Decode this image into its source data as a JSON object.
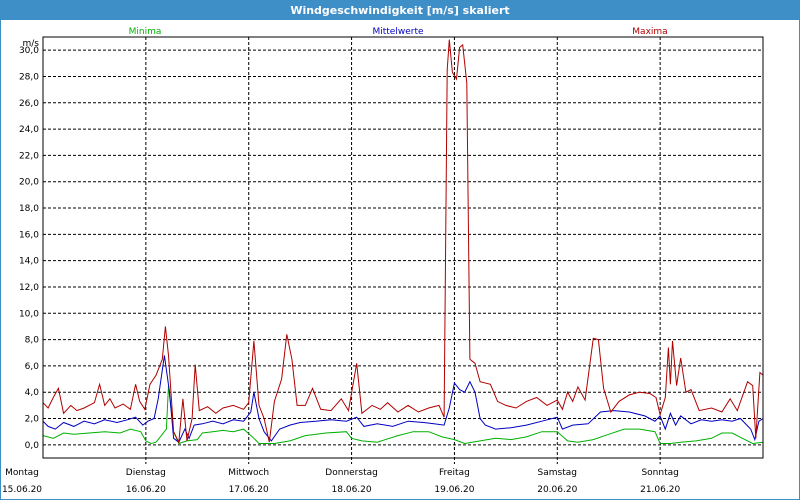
{
  "window": {
    "title": "Windgeschwindigkeit [m/s] skaliert"
  },
  "colors": {
    "minima": "#00b000",
    "mittel": "#0000c0",
    "maxima": "#b00000",
    "grid": "#000000",
    "title_bar": "#3e8ec8"
  },
  "chart_data": {
    "type": "line",
    "title": "Windgeschwindigkeit [m/s] skaliert",
    "ylabel": "m/s",
    "ylim": [
      -1.0,
      31.0
    ],
    "yticks": [
      "0,0",
      "2,0",
      "4,0",
      "6,0",
      "8,0",
      "10,0",
      "12,0",
      "14,0",
      "16,0",
      "18,0",
      "20,0",
      "22,0",
      "24,0",
      "26,0",
      "28,0",
      "30,0"
    ],
    "xlim": [
      0,
      7
    ],
    "day_labels": [
      {
        "day": "Montag",
        "date": "15.06.20"
      },
      {
        "day": "Dienstag",
        "date": "16.06.20"
      },
      {
        "day": "Mittwoch",
        "date": "17.06.20"
      },
      {
        "day": "Donnerstag",
        "date": "18.06.20"
      },
      {
        "day": "Freitag",
        "date": "19.06.20"
      },
      {
        "day": "Samstag",
        "date": "20.06.20"
      },
      {
        "day": "Sonntag",
        "date": "21.06.20"
      }
    ],
    "grid": true,
    "series": [
      {
        "name": "Minima",
        "color": "#00b000",
        "points": [
          [
            0,
            0.7
          ],
          [
            0.1,
            0.5
          ],
          [
            0.2,
            0.9
          ],
          [
            0.3,
            0.8
          ],
          [
            0.45,
            0.9
          ],
          [
            0.6,
            1.0
          ],
          [
            0.75,
            0.9
          ],
          [
            0.85,
            1.2
          ],
          [
            0.95,
            1.0
          ],
          [
            1.0,
            0.3
          ],
          [
            1.05,
            0.1
          ],
          [
            1.1,
            0.2
          ],
          [
            1.2,
            1.2
          ],
          [
            1.22,
            4.5
          ],
          [
            1.27,
            1.0
          ],
          [
            1.32,
            0.1
          ],
          [
            1.4,
            0.3
          ],
          [
            1.5,
            0.4
          ],
          [
            1.55,
            0.9
          ],
          [
            1.65,
            1.0
          ],
          [
            1.75,
            1.1
          ],
          [
            1.85,
            1.0
          ],
          [
            1.95,
            1.2
          ],
          [
            2.05,
            0.5
          ],
          [
            2.1,
            0.1
          ],
          [
            2.25,
            0.1
          ],
          [
            2.4,
            0.3
          ],
          [
            2.55,
            0.7
          ],
          [
            2.75,
            0.9
          ],
          [
            2.95,
            1.0
          ],
          [
            3.0,
            0.5
          ],
          [
            3.1,
            0.3
          ],
          [
            3.25,
            0.2
          ],
          [
            3.45,
            0.7
          ],
          [
            3.6,
            1.0
          ],
          [
            3.75,
            1.0
          ],
          [
            3.88,
            0.6
          ],
          [
            4.0,
            0.4
          ],
          [
            4.1,
            0.1
          ],
          [
            4.25,
            0.3
          ],
          [
            4.4,
            0.5
          ],
          [
            4.55,
            0.4
          ],
          [
            4.7,
            0.6
          ],
          [
            4.85,
            1.0
          ],
          [
            5.0,
            1.0
          ],
          [
            5.1,
            0.3
          ],
          [
            5.2,
            0.2
          ],
          [
            5.35,
            0.4
          ],
          [
            5.5,
            0.8
          ],
          [
            5.65,
            1.2
          ],
          [
            5.8,
            1.2
          ],
          [
            5.95,
            1.0
          ],
          [
            6.0,
            0.1
          ],
          [
            6.1,
            0.1
          ],
          [
            6.2,
            0.2
          ],
          [
            6.35,
            0.3
          ],
          [
            6.5,
            0.5
          ],
          [
            6.6,
            0.9
          ],
          [
            6.7,
            0.9
          ],
          [
            6.8,
            0.5
          ],
          [
            6.9,
            0.1
          ],
          [
            7.0,
            0.2
          ]
        ]
      },
      {
        "name": "Mittelwerte",
        "color": "#0000c0",
        "points": [
          [
            0,
            1.8
          ],
          [
            0.05,
            1.4
          ],
          [
            0.12,
            1.2
          ],
          [
            0.2,
            1.7
          ],
          [
            0.3,
            1.4
          ],
          [
            0.4,
            1.8
          ],
          [
            0.5,
            1.6
          ],
          [
            0.6,
            1.9
          ],
          [
            0.72,
            1.7
          ],
          [
            0.82,
            1.9
          ],
          [
            0.9,
            2.1
          ],
          [
            0.97,
            1.5
          ],
          [
            1.02,
            1.8
          ],
          [
            1.08,
            2.0
          ],
          [
            1.12,
            3.5
          ],
          [
            1.18,
            6.8
          ],
          [
            1.23,
            4.0
          ],
          [
            1.27,
            0.5
          ],
          [
            1.32,
            0.2
          ],
          [
            1.38,
            1.2
          ],
          [
            1.42,
            0.5
          ],
          [
            1.47,
            1.5
          ],
          [
            1.55,
            1.6
          ],
          [
            1.65,
            1.8
          ],
          [
            1.75,
            1.6
          ],
          [
            1.85,
            1.9
          ],
          [
            1.95,
            1.8
          ],
          [
            2.02,
            2.5
          ],
          [
            2.05,
            4.0
          ],
          [
            2.1,
            2.0
          ],
          [
            2.15,
            1.0
          ],
          [
            2.22,
            0.3
          ],
          [
            2.3,
            1.2
          ],
          [
            2.4,
            1.5
          ],
          [
            2.5,
            1.7
          ],
          [
            2.65,
            1.8
          ],
          [
            2.8,
            1.9
          ],
          [
            2.95,
            1.8
          ],
          [
            3.05,
            2.1
          ],
          [
            3.12,
            1.4
          ],
          [
            3.25,
            1.6
          ],
          [
            3.4,
            1.4
          ],
          [
            3.55,
            1.8
          ],
          [
            3.7,
            1.7
          ],
          [
            3.8,
            1.6
          ],
          [
            3.9,
            1.5
          ],
          [
            3.95,
            2.8
          ],
          [
            4.0,
            4.7
          ],
          [
            4.05,
            4.2
          ],
          [
            4.1,
            4.0
          ],
          [
            4.15,
            4.8
          ],
          [
            4.2,
            4.0
          ],
          [
            4.25,
            2.0
          ],
          [
            4.3,
            1.5
          ],
          [
            4.4,
            1.2
          ],
          [
            4.55,
            1.3
          ],
          [
            4.7,
            1.5
          ],
          [
            4.85,
            1.8
          ],
          [
            5.0,
            2.1
          ],
          [
            5.05,
            1.2
          ],
          [
            5.15,
            1.5
          ],
          [
            5.3,
            1.6
          ],
          [
            5.42,
            2.5
          ],
          [
            5.55,
            2.6
          ],
          [
            5.7,
            2.5
          ],
          [
            5.85,
            2.2
          ],
          [
            5.95,
            1.8
          ],
          [
            6.0,
            2.2
          ],
          [
            6.05,
            1.2
          ],
          [
            6.1,
            2.4
          ],
          [
            6.15,
            1.5
          ],
          [
            6.2,
            2.2
          ],
          [
            6.3,
            1.6
          ],
          [
            6.4,
            1.9
          ],
          [
            6.5,
            1.8
          ],
          [
            6.6,
            1.9
          ],
          [
            6.7,
            1.8
          ],
          [
            6.78,
            2.0
          ],
          [
            6.88,
            1.2
          ],
          [
            6.92,
            0.4
          ],
          [
            6.96,
            1.8
          ],
          [
            7.0,
            2.0
          ]
        ]
      },
      {
        "name": "Maxima",
        "color": "#b00000",
        "points": [
          [
            0,
            3.2
          ],
          [
            0.05,
            2.8
          ],
          [
            0.1,
            3.6
          ],
          [
            0.15,
            4.3
          ],
          [
            0.2,
            2.4
          ],
          [
            0.27,
            3.0
          ],
          [
            0.33,
            2.6
          ],
          [
            0.4,
            2.8
          ],
          [
            0.5,
            3.2
          ],
          [
            0.55,
            4.6
          ],
          [
            0.6,
            3.0
          ],
          [
            0.65,
            3.5
          ],
          [
            0.7,
            2.8
          ],
          [
            0.78,
            3.1
          ],
          [
            0.85,
            2.7
          ],
          [
            0.9,
            4.6
          ],
          [
            0.94,
            3.3
          ],
          [
            0.99,
            2.7
          ],
          [
            1.04,
            4.6
          ],
          [
            1.1,
            5.3
          ],
          [
            1.16,
            6.5
          ],
          [
            1.19,
            9.0
          ],
          [
            1.22,
            6.8
          ],
          [
            1.27,
            1.0
          ],
          [
            1.32,
            0.2
          ],
          [
            1.36,
            3.5
          ],
          [
            1.4,
            0.3
          ],
          [
            1.45,
            2.0
          ],
          [
            1.48,
            6.1
          ],
          [
            1.52,
            2.6
          ],
          [
            1.6,
            2.9
          ],
          [
            1.68,
            2.4
          ],
          [
            1.75,
            2.8
          ],
          [
            1.85,
            3.0
          ],
          [
            1.95,
            2.7
          ],
          [
            2.0,
            3.2
          ],
          [
            2.05,
            7.9
          ],
          [
            2.1,
            3.0
          ],
          [
            2.15,
            2.0
          ],
          [
            2.2,
            0.2
          ],
          [
            2.25,
            3.3
          ],
          [
            2.32,
            5.0
          ],
          [
            2.37,
            8.4
          ],
          [
            2.42,
            6.5
          ],
          [
            2.47,
            3.0
          ],
          [
            2.55,
            3.0
          ],
          [
            2.62,
            4.3
          ],
          [
            2.7,
            2.7
          ],
          [
            2.8,
            2.6
          ],
          [
            2.9,
            3.5
          ],
          [
            2.97,
            2.6
          ],
          [
            3.05,
            6.2
          ],
          [
            3.1,
            2.4
          ],
          [
            3.2,
            3.0
          ],
          [
            3.28,
            2.7
          ],
          [
            3.35,
            3.2
          ],
          [
            3.45,
            2.5
          ],
          [
            3.55,
            3.0
          ],
          [
            3.65,
            2.5
          ],
          [
            3.75,
            2.8
          ],
          [
            3.85,
            3.0
          ],
          [
            3.9,
            2.1
          ],
          [
            3.93,
            28.5
          ],
          [
            3.95,
            30.8
          ],
          [
            3.98,
            28.3
          ],
          [
            4.02,
            27.8
          ],
          [
            4.05,
            30.2
          ],
          [
            4.08,
            30.4
          ],
          [
            4.12,
            27.5
          ],
          [
            4.15,
            6.5
          ],
          [
            4.2,
            6.2
          ],
          [
            4.25,
            4.8
          ],
          [
            4.35,
            4.6
          ],
          [
            4.42,
            3.3
          ],
          [
            4.5,
            3.0
          ],
          [
            4.6,
            2.8
          ],
          [
            4.7,
            3.3
          ],
          [
            4.8,
            3.6
          ],
          [
            4.9,
            3.0
          ],
          [
            5.0,
            3.4
          ],
          [
            5.05,
            2.7
          ],
          [
            5.1,
            4.0
          ],
          [
            5.15,
            3.3
          ],
          [
            5.2,
            4.4
          ],
          [
            5.27,
            3.4
          ],
          [
            5.35,
            8.1
          ],
          [
            5.4,
            8.0
          ],
          [
            5.45,
            4.3
          ],
          [
            5.52,
            2.5
          ],
          [
            5.6,
            3.3
          ],
          [
            5.7,
            3.8
          ],
          [
            5.8,
            4.0
          ],
          [
            5.9,
            3.9
          ],
          [
            5.96,
            3.6
          ],
          [
            6.0,
            2.3
          ],
          [
            6.05,
            3.6
          ],
          [
            6.08,
            7.4
          ],
          [
            6.1,
            4.6
          ],
          [
            6.12,
            7.9
          ],
          [
            6.16,
            4.5
          ],
          [
            6.2,
            6.6
          ],
          [
            6.25,
            4.0
          ],
          [
            6.3,
            4.2
          ],
          [
            6.38,
            2.6
          ],
          [
            6.5,
            2.8
          ],
          [
            6.6,
            2.5
          ],
          [
            6.68,
            3.5
          ],
          [
            6.75,
            2.6
          ],
          [
            6.85,
            4.8
          ],
          [
            6.9,
            4.5
          ],
          [
            6.93,
            0.5
          ],
          [
            6.97,
            5.5
          ],
          [
            7.0,
            5.3
          ]
        ]
      }
    ]
  }
}
